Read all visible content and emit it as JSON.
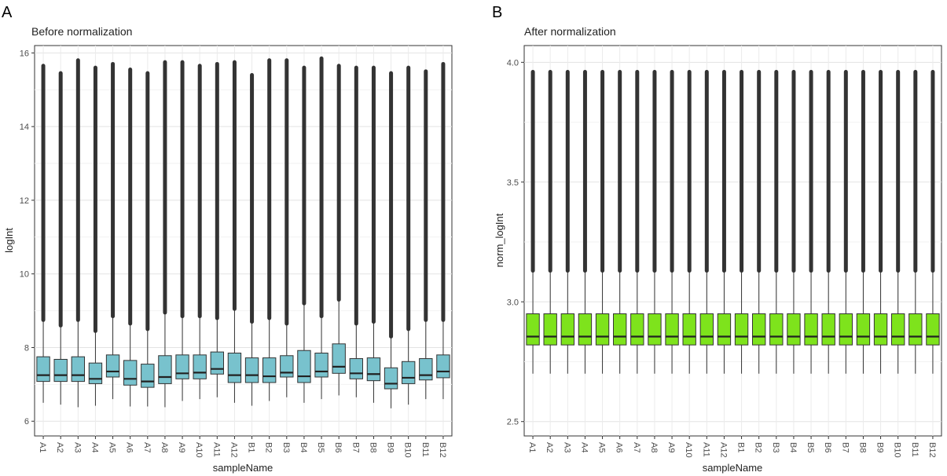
{
  "chart_data": [
    {
      "type": "boxplot",
      "panel_label": "A",
      "title": "Before normalization",
      "xlabel": "sampleName",
      "ylabel": "logInt",
      "ylim": [
        5.6,
        16.2
      ],
      "yticks": [
        6,
        8,
        10,
        12,
        14,
        16
      ],
      "grid": true,
      "fill_color": "#78c2cd",
      "outlier_color": "#333333",
      "categories": [
        "A1",
        "A2",
        "A3",
        "A4",
        "A5",
        "A6",
        "A7",
        "A8",
        "A9",
        "A10",
        "A11",
        "A12",
        "B1",
        "B2",
        "B3",
        "B4",
        "B5",
        "B6",
        "B7",
        "B8",
        "B9",
        "B10",
        "B11",
        "B12"
      ],
      "boxes": [
        {
          "name": "A1",
          "whisker_low": 6.5,
          "q1": 7.08,
          "median": 7.25,
          "q3": 7.75,
          "whisker_high": 8.75,
          "outlier_max": 15.65
        },
        {
          "name": "A2",
          "whisker_low": 6.45,
          "q1": 7.08,
          "median": 7.25,
          "q3": 7.68,
          "whisker_high": 8.6,
          "outlier_max": 15.45
        },
        {
          "name": "A3",
          "whisker_low": 6.38,
          "q1": 7.08,
          "median": 7.25,
          "q3": 7.75,
          "whisker_high": 8.75,
          "outlier_max": 15.8
        },
        {
          "name": "A4",
          "whisker_low": 6.42,
          "q1": 7.02,
          "median": 7.15,
          "q3": 7.58,
          "whisker_high": 8.45,
          "outlier_max": 15.6
        },
        {
          "name": "A5",
          "whisker_low": 6.6,
          "q1": 7.2,
          "median": 7.35,
          "q3": 7.8,
          "whisker_high": 8.85,
          "outlier_max": 15.7
        },
        {
          "name": "A6",
          "whisker_low": 6.4,
          "q1": 6.98,
          "median": 7.15,
          "q3": 7.65,
          "whisker_high": 8.65,
          "outlier_max": 15.55
        },
        {
          "name": "A7",
          "whisker_low": 6.4,
          "q1": 6.92,
          "median": 7.08,
          "q3": 7.55,
          "whisker_high": 8.5,
          "outlier_max": 15.45
        },
        {
          "name": "A8",
          "whisker_low": 6.38,
          "q1": 7.02,
          "median": 7.2,
          "q3": 7.78,
          "whisker_high": 8.95,
          "outlier_max": 15.75
        },
        {
          "name": "A9",
          "whisker_low": 6.55,
          "q1": 7.15,
          "median": 7.3,
          "q3": 7.8,
          "whisker_high": 8.85,
          "outlier_max": 15.75
        },
        {
          "name": "A10",
          "whisker_low": 6.6,
          "q1": 7.15,
          "median": 7.32,
          "q3": 7.8,
          "whisker_high": 8.85,
          "outlier_max": 15.65
        },
        {
          "name": "A11",
          "whisker_low": 6.65,
          "q1": 7.28,
          "median": 7.42,
          "q3": 7.88,
          "whisker_high": 8.8,
          "outlier_max": 15.7
        },
        {
          "name": "A12",
          "whisker_low": 6.5,
          "q1": 7.05,
          "median": 7.25,
          "q3": 7.85,
          "whisker_high": 9.05,
          "outlier_max": 15.75
        },
        {
          "name": "B1",
          "whisker_low": 6.42,
          "q1": 7.05,
          "median": 7.25,
          "q3": 7.72,
          "whisker_high": 8.7,
          "outlier_max": 15.4
        },
        {
          "name": "B2",
          "whisker_low": 6.55,
          "q1": 7.05,
          "median": 7.22,
          "q3": 7.72,
          "whisker_high": 8.8,
          "outlier_max": 15.8
        },
        {
          "name": "B3",
          "whisker_low": 6.65,
          "q1": 7.2,
          "median": 7.32,
          "q3": 7.78,
          "whisker_high": 8.65,
          "outlier_max": 15.8
        },
        {
          "name": "B4",
          "whisker_low": 6.5,
          "q1": 7.05,
          "median": 7.22,
          "q3": 7.92,
          "whisker_high": 9.2,
          "outlier_max": 15.6
        },
        {
          "name": "B5",
          "whisker_low": 6.6,
          "q1": 7.2,
          "median": 7.35,
          "q3": 7.85,
          "whisker_high": 8.85,
          "outlier_max": 15.85
        },
        {
          "name": "B6",
          "whisker_low": 6.7,
          "q1": 7.3,
          "median": 7.48,
          "q3": 8.1,
          "whisker_high": 9.3,
          "outlier_max": 15.65
        },
        {
          "name": "B7",
          "whisker_low": 6.65,
          "q1": 7.15,
          "median": 7.3,
          "q3": 7.7,
          "whisker_high": 8.65,
          "outlier_max": 15.6
        },
        {
          "name": "B8",
          "whisker_low": 6.5,
          "q1": 7.1,
          "median": 7.28,
          "q3": 7.72,
          "whisker_high": 8.7,
          "outlier_max": 15.6
        },
        {
          "name": "B9",
          "whisker_low": 6.35,
          "q1": 6.88,
          "median": 7.02,
          "q3": 7.45,
          "whisker_high": 8.3,
          "outlier_max": 15.45
        },
        {
          "name": "B10",
          "whisker_low": 6.45,
          "q1": 7.02,
          "median": 7.18,
          "q3": 7.62,
          "whisker_high": 8.5,
          "outlier_max": 15.6
        },
        {
          "name": "B11",
          "whisker_low": 6.6,
          "q1": 7.12,
          "median": 7.25,
          "q3": 7.7,
          "whisker_high": 8.75,
          "outlier_max": 15.5
        },
        {
          "name": "B12",
          "whisker_low": 6.6,
          "q1": 7.18,
          "median": 7.35,
          "q3": 7.8,
          "whisker_high": 8.75,
          "outlier_max": 15.7
        }
      ]
    },
    {
      "type": "boxplot",
      "panel_label": "B",
      "title": "After normalization",
      "xlabel": "sampleName",
      "ylabel": "norm_logInt",
      "ylim": [
        2.44,
        4.07
      ],
      "yticks": [
        2.5,
        3.0,
        3.5,
        4.0
      ],
      "ytick_labels": [
        "2.5",
        "3.0",
        "3.5",
        "4.0"
      ],
      "grid": true,
      "fill_color": "#7ee31c",
      "outlier_color": "#333333",
      "categories": [
        "A1",
        "A2",
        "A3",
        "A4",
        "A5",
        "A6",
        "A7",
        "A8",
        "A9",
        "A10",
        "A11",
        "A12",
        "B1",
        "B2",
        "B3",
        "B4",
        "B5",
        "B6",
        "B7",
        "B8",
        "B9",
        "B10",
        "B11",
        "B12"
      ],
      "boxes": [
        {
          "name": "A1",
          "whisker_low": 2.7,
          "q1": 2.82,
          "median": 2.855,
          "q3": 2.95,
          "whisker_high": 3.13,
          "outlier_max": 3.96
        },
        {
          "name": "A2",
          "whisker_low": 2.7,
          "q1": 2.82,
          "median": 2.855,
          "q3": 2.95,
          "whisker_high": 3.13,
          "outlier_max": 3.96
        },
        {
          "name": "A3",
          "whisker_low": 2.7,
          "q1": 2.82,
          "median": 2.855,
          "q3": 2.95,
          "whisker_high": 3.13,
          "outlier_max": 3.96
        },
        {
          "name": "A4",
          "whisker_low": 2.7,
          "q1": 2.82,
          "median": 2.855,
          "q3": 2.95,
          "whisker_high": 3.13,
          "outlier_max": 3.96
        },
        {
          "name": "A5",
          "whisker_low": 2.7,
          "q1": 2.82,
          "median": 2.855,
          "q3": 2.95,
          "whisker_high": 3.13,
          "outlier_max": 3.96
        },
        {
          "name": "A6",
          "whisker_low": 2.7,
          "q1": 2.82,
          "median": 2.855,
          "q3": 2.95,
          "whisker_high": 3.13,
          "outlier_max": 3.96
        },
        {
          "name": "A7",
          "whisker_low": 2.7,
          "q1": 2.82,
          "median": 2.855,
          "q3": 2.95,
          "whisker_high": 3.13,
          "outlier_max": 3.96
        },
        {
          "name": "A8",
          "whisker_low": 2.7,
          "q1": 2.82,
          "median": 2.855,
          "q3": 2.95,
          "whisker_high": 3.13,
          "outlier_max": 3.96
        },
        {
          "name": "A9",
          "whisker_low": 2.7,
          "q1": 2.82,
          "median": 2.855,
          "q3": 2.95,
          "whisker_high": 3.13,
          "outlier_max": 3.96
        },
        {
          "name": "A10",
          "whisker_low": 2.7,
          "q1": 2.82,
          "median": 2.855,
          "q3": 2.95,
          "whisker_high": 3.13,
          "outlier_max": 3.96
        },
        {
          "name": "A11",
          "whisker_low": 2.7,
          "q1": 2.82,
          "median": 2.855,
          "q3": 2.95,
          "whisker_high": 3.13,
          "outlier_max": 3.96
        },
        {
          "name": "A12",
          "whisker_low": 2.7,
          "q1": 2.82,
          "median": 2.855,
          "q3": 2.95,
          "whisker_high": 3.13,
          "outlier_max": 3.96
        },
        {
          "name": "B1",
          "whisker_low": 2.7,
          "q1": 2.82,
          "median": 2.855,
          "q3": 2.95,
          "whisker_high": 3.13,
          "outlier_max": 3.96
        },
        {
          "name": "B2",
          "whisker_low": 2.7,
          "q1": 2.82,
          "median": 2.855,
          "q3": 2.95,
          "whisker_high": 3.13,
          "outlier_max": 3.96
        },
        {
          "name": "B3",
          "whisker_low": 2.7,
          "q1": 2.82,
          "median": 2.855,
          "q3": 2.95,
          "whisker_high": 3.13,
          "outlier_max": 3.96
        },
        {
          "name": "B4",
          "whisker_low": 2.7,
          "q1": 2.82,
          "median": 2.855,
          "q3": 2.95,
          "whisker_high": 3.13,
          "outlier_max": 3.96
        },
        {
          "name": "B5",
          "whisker_low": 2.7,
          "q1": 2.82,
          "median": 2.855,
          "q3": 2.95,
          "whisker_high": 3.13,
          "outlier_max": 3.96
        },
        {
          "name": "B6",
          "whisker_low": 2.7,
          "q1": 2.82,
          "median": 2.855,
          "q3": 2.95,
          "whisker_high": 3.13,
          "outlier_max": 3.96
        },
        {
          "name": "B7",
          "whisker_low": 2.7,
          "q1": 2.82,
          "median": 2.855,
          "q3": 2.95,
          "whisker_high": 3.13,
          "outlier_max": 3.96
        },
        {
          "name": "B8",
          "whisker_low": 2.7,
          "q1": 2.82,
          "median": 2.855,
          "q3": 2.95,
          "whisker_high": 3.13,
          "outlier_max": 3.96
        },
        {
          "name": "B9",
          "whisker_low": 2.7,
          "q1": 2.82,
          "median": 2.855,
          "q3": 2.95,
          "whisker_high": 3.13,
          "outlier_max": 3.96
        },
        {
          "name": "B10",
          "whisker_low": 2.7,
          "q1": 2.82,
          "median": 2.855,
          "q3": 2.95,
          "whisker_high": 3.13,
          "outlier_max": 3.96
        },
        {
          "name": "B11",
          "whisker_low": 2.7,
          "q1": 2.82,
          "median": 2.855,
          "q3": 2.95,
          "whisker_high": 3.13,
          "outlier_max": 3.96
        },
        {
          "name": "B12",
          "whisker_low": 2.7,
          "q1": 2.82,
          "median": 2.855,
          "q3": 2.95,
          "whisker_high": 3.13,
          "outlier_max": 3.96
        }
      ]
    }
  ]
}
